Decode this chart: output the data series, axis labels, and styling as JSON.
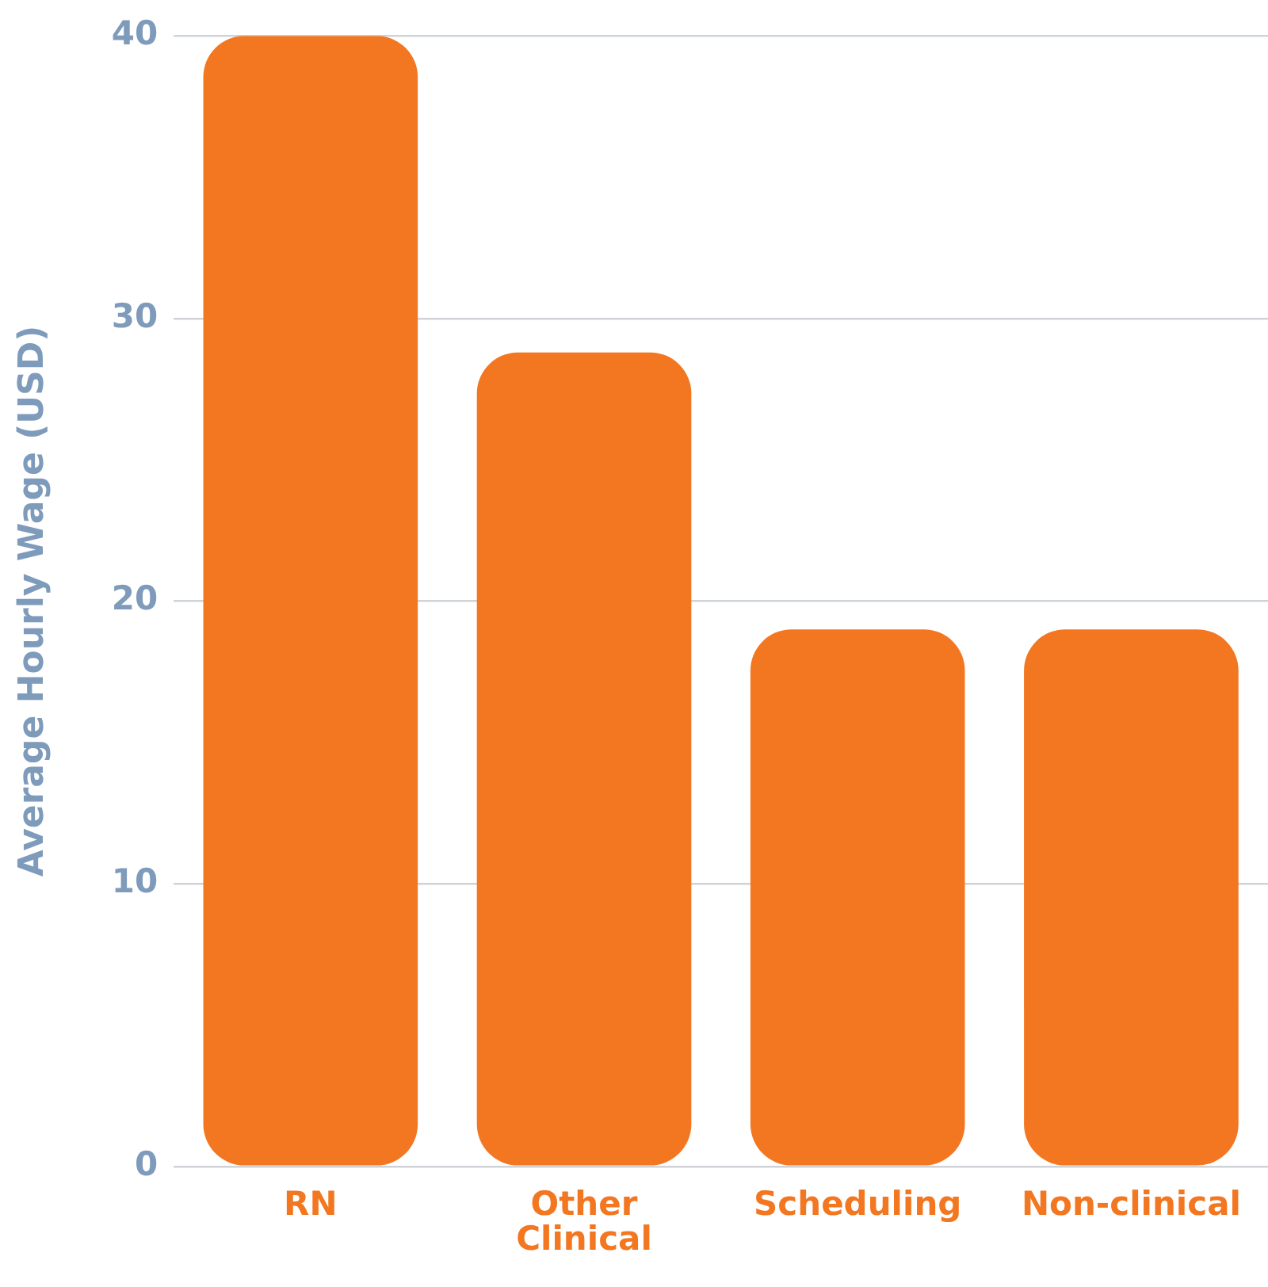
{
  "chart_data": {
    "type": "bar",
    "ylabel": "Average Hourly Wage (USD)",
    "categories": [
      "RN",
      "Other Clinical",
      "Scheduling",
      "Non-clinical"
    ],
    "values": [
      40,
      28.8,
      19,
      19
    ],
    "color": "#f37721",
    "ylim": [
      0,
      40
    ],
    "yticks": [
      0,
      10,
      20,
      30,
      40
    ],
    "grid": "y",
    "legend": false
  }
}
